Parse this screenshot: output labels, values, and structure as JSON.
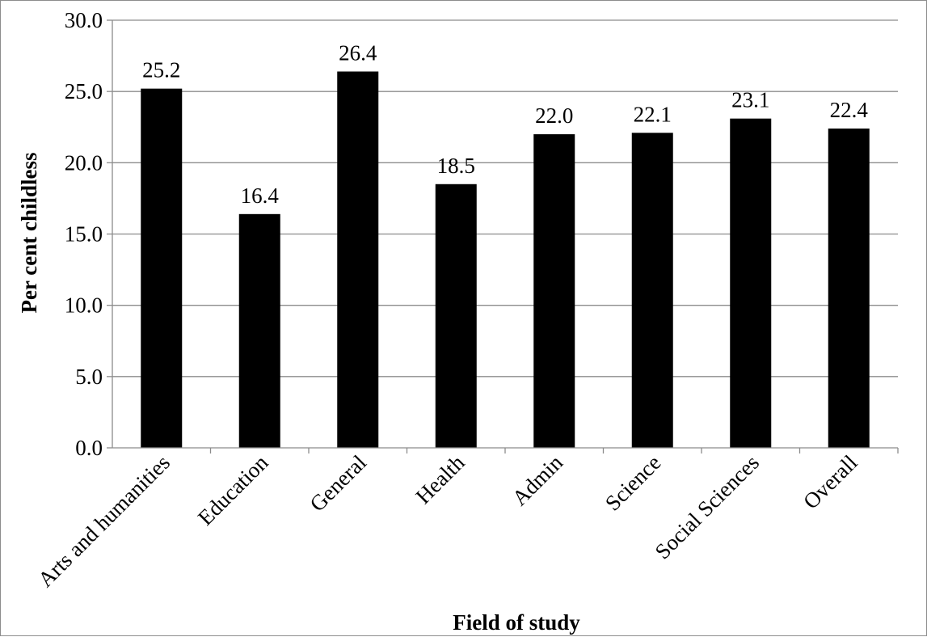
{
  "chart_data": {
    "type": "bar",
    "title": "",
    "xlabel": "Field of study",
    "ylabel": "Per cent childless",
    "categories": [
      "Arts and humanities",
      "Education",
      "General",
      "Health",
      "Admin",
      "Science",
      "Social Sciences",
      "Overall"
    ],
    "values": [
      25.2,
      16.4,
      26.4,
      18.5,
      22.0,
      22.1,
      23.1,
      22.4
    ],
    "data_labels": [
      "25.2",
      "16.4",
      "26.4",
      "18.5",
      "22.0",
      "22.1",
      "23.1",
      "22.4"
    ],
    "yticks": [
      "0.0",
      "5.0",
      "10.0",
      "15.0",
      "20.0",
      "25.0",
      "30.0"
    ],
    "ylim": [
      0,
      30
    ],
    "grid": true,
    "legend": "none",
    "bar_color": "#000000",
    "grid_color": "#8c8c8c"
  }
}
